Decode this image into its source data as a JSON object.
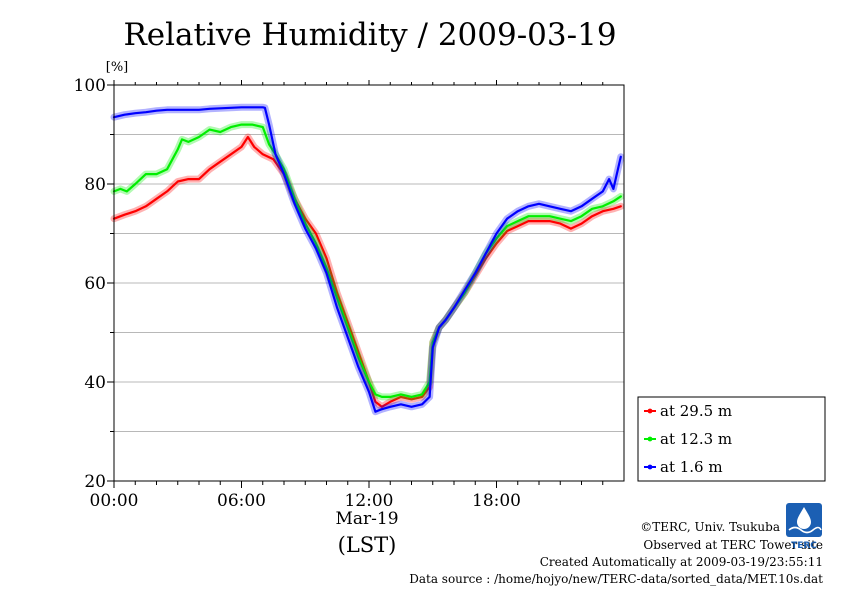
{
  "chart_data": {
    "type": "line",
    "title": "Relative Humidity / 2009-03-19",
    "ylabel": "[%]",
    "xlabel": "(LST)",
    "date_label": "Mar-19",
    "xlim": [
      0,
      24
    ],
    "ylim": [
      20,
      100
    ],
    "x_ticks": [
      {
        "value": 0,
        "label": "00:00"
      },
      {
        "value": 6,
        "label": "06:00"
      },
      {
        "value": 12,
        "label": "12:00"
      },
      {
        "value": 18,
        "label": "18:00"
      }
    ],
    "y_ticks": [
      {
        "value": 20,
        "label": "20"
      },
      {
        "value": 40,
        "label": "40"
      },
      {
        "value": 60,
        "label": "60"
      },
      {
        "value": 80,
        "label": "80"
      },
      {
        "value": 100,
        "label": "100"
      }
    ],
    "grid": true,
    "legend_position": "bottom-right",
    "series": [
      {
        "name": "at 29.5 m",
        "color": "#ff0000",
        "x": [
          0,
          0.5,
          1,
          1.5,
          2,
          2.5,
          3,
          3.5,
          4,
          4.5,
          5,
          5.5,
          6,
          6.3,
          6.6,
          7,
          7.5,
          8,
          8.5,
          9,
          9.5,
          10,
          10.5,
          11,
          11.5,
          12,
          12.3,
          12.6,
          13,
          13.5,
          14,
          14.5,
          14.85,
          15,
          15.3,
          15.6,
          16,
          16.5,
          17,
          17.5,
          18,
          18.5,
          19,
          19.5,
          20,
          20.5,
          21,
          21.5,
          22,
          22.5,
          23,
          23.5,
          23.85
        ],
        "values": [
          73,
          73.8,
          74.5,
          75.5,
          77,
          78.5,
          80.5,
          81,
          81,
          83,
          84.5,
          86,
          87.5,
          89.5,
          87.5,
          86,
          85,
          82,
          77,
          73,
          70,
          65,
          58,
          52,
          46,
          40,
          36,
          35,
          36,
          37,
          36.5,
          37,
          39,
          48,
          51,
          52.5,
          55,
          58,
          61.5,
          65,
          68,
          70.5,
          71.5,
          72.5,
          72.5,
          72.5,
          72,
          71,
          72,
          73.5,
          74.5,
          75,
          75.5
        ]
      },
      {
        "name": "at 12.3 m",
        "color": "#00ee00",
        "x": [
          0,
          0.3,
          0.6,
          1,
          1.5,
          2,
          2.5,
          3,
          3.2,
          3.5,
          4,
          4.5,
          5,
          5.5,
          6,
          6.5,
          7,
          7.3,
          7.6,
          8,
          8.5,
          9,
          9.5,
          10,
          10.5,
          11,
          11.5,
          12,
          12.3,
          12.6,
          13,
          13.5,
          14,
          14.5,
          14.85,
          15,
          15.3,
          15.6,
          16,
          16.5,
          17,
          17.5,
          18,
          18.5,
          19,
          19.5,
          20,
          20.5,
          21,
          21.5,
          22,
          22.5,
          23,
          23.5,
          23.85
        ],
        "values": [
          78.5,
          79,
          78.5,
          80,
          82,
          82,
          83,
          87,
          89,
          88.5,
          89.5,
          91,
          90.5,
          91.5,
          92,
          92,
          91.5,
          88,
          86,
          83,
          77,
          72,
          68,
          63,
          57,
          51,
          45,
          40,
          37.5,
          37,
          37,
          37.5,
          37,
          37.5,
          40,
          48,
          51,
          52.5,
          55,
          58,
          62,
          66,
          69,
          71.5,
          72.5,
          73.5,
          73.5,
          73.5,
          73,
          72.5,
          73.5,
          75,
          75.5,
          76.5,
          77.5
        ]
      },
      {
        "name": "at 1.6 m",
        "color": "#0000ff",
        "x": [
          0,
          0.5,
          1,
          1.5,
          2,
          2.5,
          3,
          3.5,
          4,
          4.5,
          5,
          5.5,
          6,
          6.5,
          7,
          7.1,
          7.3,
          7.6,
          8,
          8.5,
          9,
          9.5,
          10,
          10.5,
          11,
          11.5,
          12,
          12.3,
          12.6,
          13,
          13.5,
          14,
          14.5,
          14.85,
          15,
          15.3,
          15.6,
          16,
          16.5,
          17,
          17.5,
          18,
          18.5,
          19,
          19.5,
          20,
          20.5,
          21,
          21.5,
          22,
          22.5,
          23,
          23.3,
          23.5,
          23.85
        ],
        "values": [
          93.5,
          94,
          94.3,
          94.5,
          94.8,
          95,
          95,
          95,
          95,
          95.2,
          95.3,
          95.4,
          95.5,
          95.5,
          95.5,
          95.4,
          92,
          86,
          82,
          76,
          71,
          67,
          62,
          55,
          49,
          43,
          38,
          34,
          34.5,
          35,
          35.5,
          35,
          35.5,
          37,
          47,
          51,
          52.5,
          55,
          58.5,
          62,
          66,
          70,
          73,
          74.5,
          75.5,
          76,
          75.5,
          75,
          74.5,
          75.5,
          77,
          78.5,
          81,
          79,
          85.5
        ]
      }
    ]
  },
  "footer": {
    "copyright": "©TERC, Univ. Tsukuba",
    "observed": "Observed at TERC Tower site",
    "created": "Created Automatically at 2009-03-19/23:55:11",
    "source": "Data source : /home/hojyo/new/TERC-data/sorted_data/MET.10s.dat"
  },
  "logo": {
    "text": "TERC",
    "icon": "terc-logo-icon",
    "color": "#1b5fb3"
  }
}
